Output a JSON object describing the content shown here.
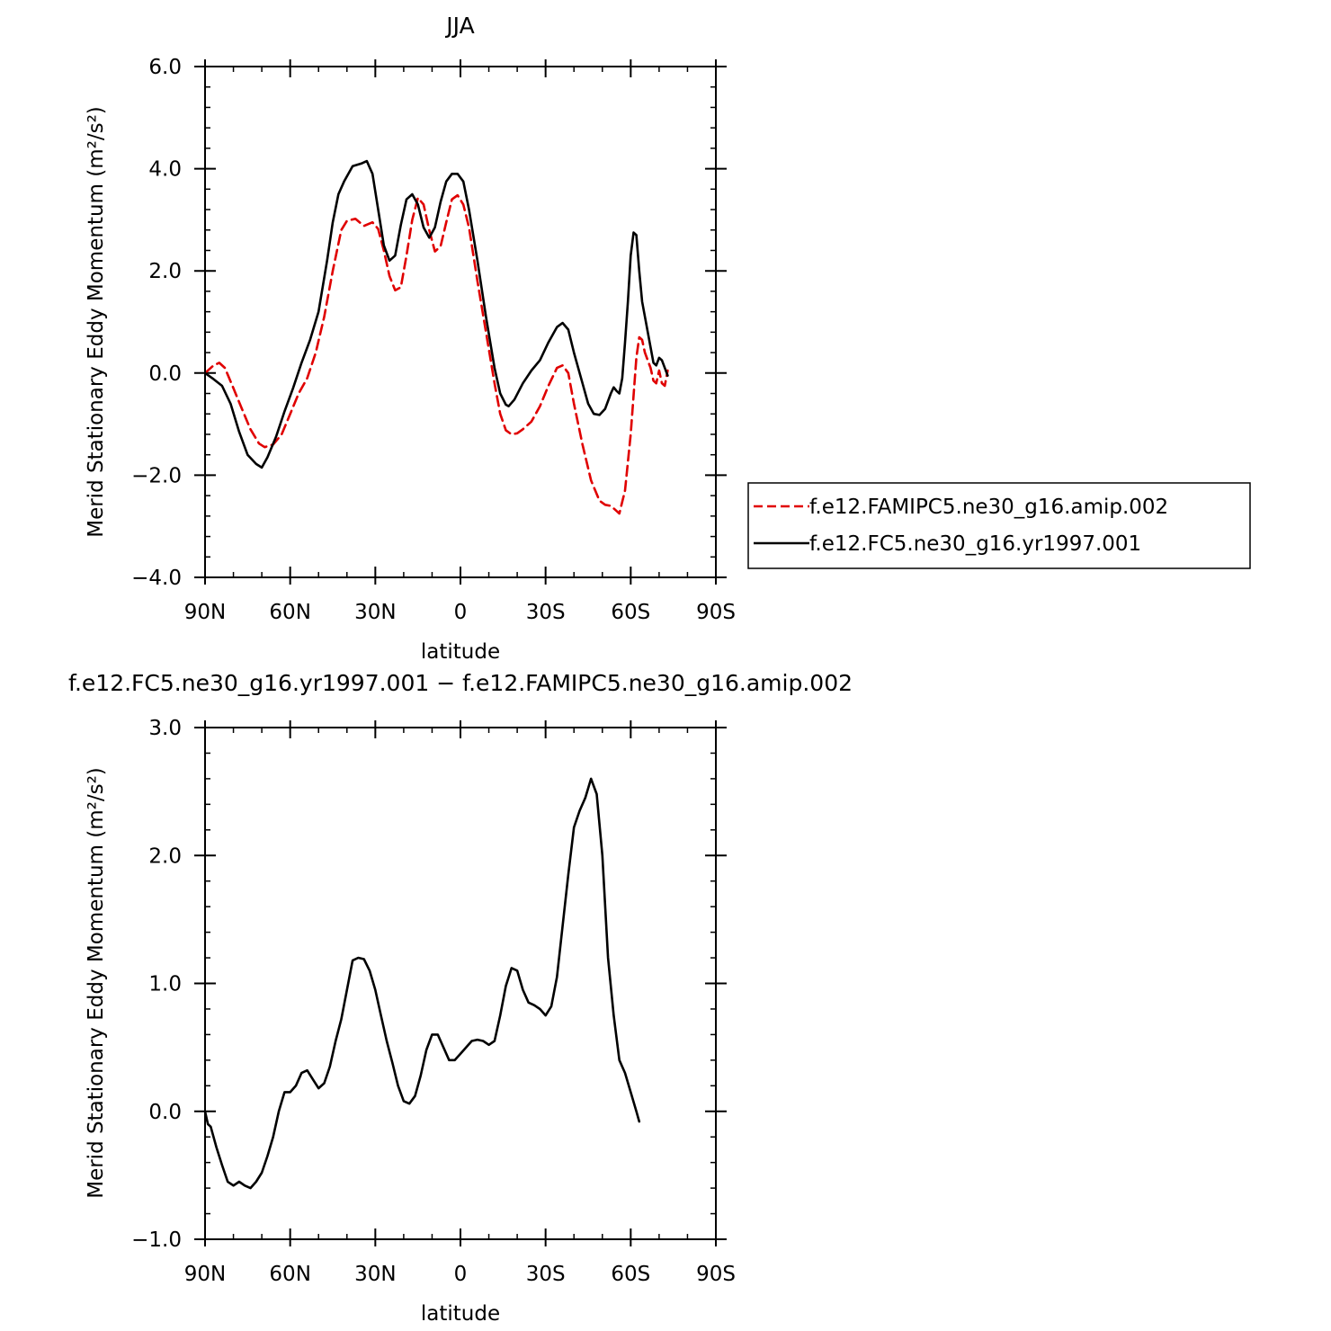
{
  "chart_data": [
    {
      "type": "line",
      "title": "JJA",
      "xlabel": "latitude",
      "ylabel": "Merid Stationary Eddy Momentum (m²/s²)",
      "xlim": [
        90,
        -90
      ],
      "ylim": [
        -4.0,
        6.0
      ],
      "xticks": [
        {
          "value": 90,
          "label": "90N"
        },
        {
          "value": 60,
          "label": "60N"
        },
        {
          "value": 30,
          "label": "30N"
        },
        {
          "value": 0,
          "label": "0"
        },
        {
          "value": -30,
          "label": "30S"
        },
        {
          "value": -60,
          "label": "60S"
        },
        {
          "value": -90,
          "label": "90S"
        }
      ],
      "yticks": [
        {
          "value": 6.0,
          "label": "6.0"
        },
        {
          "value": 4.0,
          "label": "4.0"
        },
        {
          "value": 2.0,
          "label": "2.0"
        },
        {
          "value": 0.0,
          "label": "0.0"
        },
        {
          "value": -2.0,
          "label": "−2.0"
        },
        {
          "value": -4.0,
          "label": "−4.0"
        }
      ],
      "legend_position": "right",
      "series": [
        {
          "name": "f.e12.FAMIPC5.ne30_g16.amip.002",
          "color": "#e00000",
          "dash": true,
          "points": [
            [
              90,
              0.0
            ],
            [
              87,
              0.15
            ],
            [
              85,
              0.2
            ],
            [
              83,
              0.1
            ],
            [
              80,
              -0.3
            ],
            [
              77,
              -0.7
            ],
            [
              74,
              -1.1
            ],
            [
              71,
              -1.38
            ],
            [
              69,
              -1.45
            ],
            [
              66,
              -1.4
            ],
            [
              63,
              -1.2
            ],
            [
              60,
              -0.8
            ],
            [
              57,
              -0.4
            ],
            [
              54,
              -0.1
            ],
            [
              51,
              0.4
            ],
            [
              48,
              1.1
            ],
            [
              45,
              2.0
            ],
            [
              42,
              2.8
            ],
            [
              40,
              2.98
            ],
            [
              37,
              3.02
            ],
            [
              34,
              2.88
            ],
            [
              31,
              2.95
            ],
            [
              29,
              2.82
            ],
            [
              27,
              2.4
            ],
            [
              25,
              1.9
            ],
            [
              23,
              1.62
            ],
            [
              21,
              1.68
            ],
            [
              19,
              2.3
            ],
            [
              17,
              3.0
            ],
            [
              15,
              3.43
            ],
            [
              13,
              3.3
            ],
            [
              11,
              2.8
            ],
            [
              9,
              2.38
            ],
            [
              7,
              2.48
            ],
            [
              5,
              2.95
            ],
            [
              3,
              3.4
            ],
            [
              1,
              3.48
            ],
            [
              -1,
              3.3
            ],
            [
              -3,
              2.85
            ],
            [
              -6,
              1.8
            ],
            [
              -9,
              0.8
            ],
            [
              -12,
              -0.2
            ],
            [
              -14,
              -0.8
            ],
            [
              -16,
              -1.12
            ],
            [
              -18,
              -1.2
            ],
            [
              -20,
              -1.18
            ],
            [
              -22,
              -1.1
            ],
            [
              -25,
              -0.95
            ],
            [
              -28,
              -0.65
            ],
            [
              -31,
              -0.25
            ],
            [
              -34,
              0.1
            ],
            [
              -36,
              0.15
            ],
            [
              -38,
              0.0
            ],
            [
              -40,
              -0.6
            ],
            [
              -43,
              -1.4
            ],
            [
              -46,
              -2.1
            ],
            [
              -49,
              -2.5
            ],
            [
              -51,
              -2.58
            ],
            [
              -53,
              -2.6
            ],
            [
              -55,
              -2.7
            ],
            [
              -56,
              -2.75
            ],
            [
              -58,
              -2.3
            ],
            [
              -60,
              -1.2
            ],
            [
              -62,
              0.3
            ],
            [
              -63,
              0.7
            ],
            [
              -64,
              0.65
            ],
            [
              -65,
              0.4
            ],
            [
              -67,
              0.1
            ],
            [
              -68,
              -0.15
            ],
            [
              -69,
              -0.2
            ],
            [
              -70,
              0.05
            ],
            [
              -71,
              -0.2
            ],
            [
              -72,
              -0.25
            ],
            [
              -73,
              0.05
            ]
          ]
        },
        {
          "name": "f.e12.FC5.ne30_g16.yr1997.001",
          "color": "#000000",
          "dash": false,
          "points": [
            [
              90,
              0.0
            ],
            [
              87,
              -0.12
            ],
            [
              84,
              -0.25
            ],
            [
              81,
              -0.6
            ],
            [
              78,
              -1.15
            ],
            [
              75,
              -1.6
            ],
            [
              72,
              -1.78
            ],
            [
              70,
              -1.85
            ],
            [
              68,
              -1.65
            ],
            [
              65,
              -1.25
            ],
            [
              62,
              -0.75
            ],
            [
              59,
              -0.3
            ],
            [
              56,
              0.2
            ],
            [
              53,
              0.65
            ],
            [
              50,
              1.2
            ],
            [
              47,
              2.2
            ],
            [
              45,
              2.95
            ],
            [
              43,
              3.5
            ],
            [
              41,
              3.75
            ],
            [
              38,
              4.05
            ],
            [
              35,
              4.1
            ],
            [
              33,
              4.15
            ],
            [
              31,
              3.9
            ],
            [
              29,
              3.2
            ],
            [
              27,
              2.5
            ],
            [
              25,
              2.2
            ],
            [
              23,
              2.3
            ],
            [
              21,
              2.9
            ],
            [
              19,
              3.4
            ],
            [
              17,
              3.5
            ],
            [
              15,
              3.3
            ],
            [
              13,
              2.85
            ],
            [
              11,
              2.65
            ],
            [
              9,
              2.85
            ],
            [
              7,
              3.35
            ],
            [
              5,
              3.75
            ],
            [
              3,
              3.9
            ],
            [
              1,
              3.9
            ],
            [
              -1,
              3.75
            ],
            [
              -3,
              3.2
            ],
            [
              -6,
              2.2
            ],
            [
              -9,
              1.1
            ],
            [
              -12,
              0.1
            ],
            [
              -14,
              -0.4
            ],
            [
              -16,
              -0.62
            ],
            [
              -17,
              -0.65
            ],
            [
              -19,
              -0.52
            ],
            [
              -22,
              -0.2
            ],
            [
              -25,
              0.05
            ],
            [
              -28,
              0.25
            ],
            [
              -31,
              0.6
            ],
            [
              -34,
              0.9
            ],
            [
              -36,
              0.98
            ],
            [
              -38,
              0.85
            ],
            [
              -40,
              0.4
            ],
            [
              -43,
              -0.2
            ],
            [
              -45,
              -0.6
            ],
            [
              -47,
              -0.8
            ],
            [
              -49,
              -0.82
            ],
            [
              -51,
              -0.7
            ],
            [
              -53,
              -0.4
            ],
            [
              -54,
              -0.28
            ],
            [
              -55,
              -0.35
            ],
            [
              -56,
              -0.4
            ],
            [
              -57,
              -0.1
            ],
            [
              -58,
              0.6
            ],
            [
              -59,
              1.4
            ],
            [
              -60,
              2.3
            ],
            [
              -61,
              2.75
            ],
            [
              -62,
              2.7
            ],
            [
              -63,
              2.0
            ],
            [
              -64,
              1.4
            ],
            [
              -66,
              0.8
            ],
            [
              -68,
              0.2
            ],
            [
              -69,
              0.15
            ],
            [
              -70,
              0.3
            ],
            [
              -71,
              0.25
            ],
            [
              -72,
              0.1
            ],
            [
              -73,
              -0.05
            ]
          ]
        }
      ]
    },
    {
      "type": "line",
      "title": "f.e12.FC5.ne30_g16.yr1997.001 − f.e12.FAMIPC5.ne30_g16.amip.002",
      "xlabel": "latitude",
      "ylabel": "Merid Stationary Eddy Momentum (m²/s²)",
      "xlim": [
        90,
        -90
      ],
      "ylim": [
        -1.0,
        3.0
      ],
      "xticks": [
        {
          "value": 90,
          "label": "90N"
        },
        {
          "value": 60,
          "label": "60N"
        },
        {
          "value": 30,
          "label": "30N"
        },
        {
          "value": 0,
          "label": "0"
        },
        {
          "value": -30,
          "label": "30S"
        },
        {
          "value": -60,
          "label": "60S"
        },
        {
          "value": -90,
          "label": "90S"
        }
      ],
      "yticks": [
        {
          "value": 3.0,
          "label": "3.0"
        },
        {
          "value": 2.0,
          "label": "2.0"
        },
        {
          "value": 1.0,
          "label": "1.0"
        },
        {
          "value": 0.0,
          "label": "0.0"
        },
        {
          "value": -1.0,
          "label": "−1.0"
        }
      ],
      "series": [
        {
          "color": "#000000",
          "dash": false,
          "points": [
            [
              90,
              0.0
            ],
            [
              89,
              -0.1
            ],
            [
              88,
              -0.12
            ],
            [
              86,
              -0.28
            ],
            [
              84,
              -0.42
            ],
            [
              82,
              -0.55
            ],
            [
              80,
              -0.58
            ],
            [
              78,
              -0.55
            ],
            [
              76,
              -0.58
            ],
            [
              74,
              -0.6
            ],
            [
              72,
              -0.55
            ],
            [
              70,
              -0.48
            ],
            [
              68,
              -0.35
            ],
            [
              66,
              -0.2
            ],
            [
              64,
              0.0
            ],
            [
              62,
              0.15
            ],
            [
              60,
              0.15
            ],
            [
              58,
              0.2
            ],
            [
              56,
              0.3
            ],
            [
              54,
              0.32
            ],
            [
              52,
              0.25
            ],
            [
              50,
              0.18
            ],
            [
              48,
              0.22
            ],
            [
              46,
              0.35
            ],
            [
              44,
              0.55
            ],
            [
              42,
              0.72
            ],
            [
              40,
              0.95
            ],
            [
              38,
              1.18
            ],
            [
              36,
              1.2
            ],
            [
              34,
              1.19
            ],
            [
              32,
              1.1
            ],
            [
              30,
              0.95
            ],
            [
              28,
              0.75
            ],
            [
              26,
              0.55
            ],
            [
              24,
              0.38
            ],
            [
              22,
              0.2
            ],
            [
              20,
              0.08
            ],
            [
              18,
              0.06
            ],
            [
              16,
              0.12
            ],
            [
              14,
              0.28
            ],
            [
              12,
              0.48
            ],
            [
              10,
              0.6
            ],
            [
              8,
              0.6
            ],
            [
              6,
              0.5
            ],
            [
              4,
              0.4
            ],
            [
              2,
              0.4
            ],
            [
              0,
              0.45
            ],
            [
              -2,
              0.5
            ],
            [
              -4,
              0.55
            ],
            [
              -6,
              0.56
            ],
            [
              -8,
              0.55
            ],
            [
              -10,
              0.52
            ],
            [
              -12,
              0.55
            ],
            [
              -14,
              0.75
            ],
            [
              -16,
              0.98
            ],
            [
              -18,
              1.12
            ],
            [
              -20,
              1.1
            ],
            [
              -22,
              0.95
            ],
            [
              -24,
              0.85
            ],
            [
              -26,
              0.83
            ],
            [
              -28,
              0.8
            ],
            [
              -30,
              0.75
            ],
            [
              -32,
              0.82
            ],
            [
              -34,
              1.05
            ],
            [
              -36,
              1.45
            ],
            [
              -38,
              1.85
            ],
            [
              -40,
              2.22
            ],
            [
              -42,
              2.35
            ],
            [
              -44,
              2.45
            ],
            [
              -46,
              2.6
            ],
            [
              -48,
              2.48
            ],
            [
              -50,
              2.0
            ],
            [
              -52,
              1.2
            ],
            [
              -54,
              0.75
            ],
            [
              -56,
              0.4
            ],
            [
              -58,
              0.3
            ],
            [
              -60,
              0.15
            ],
            [
              -62,
              0.0
            ],
            [
              -63,
              -0.08
            ]
          ]
        }
      ]
    }
  ]
}
